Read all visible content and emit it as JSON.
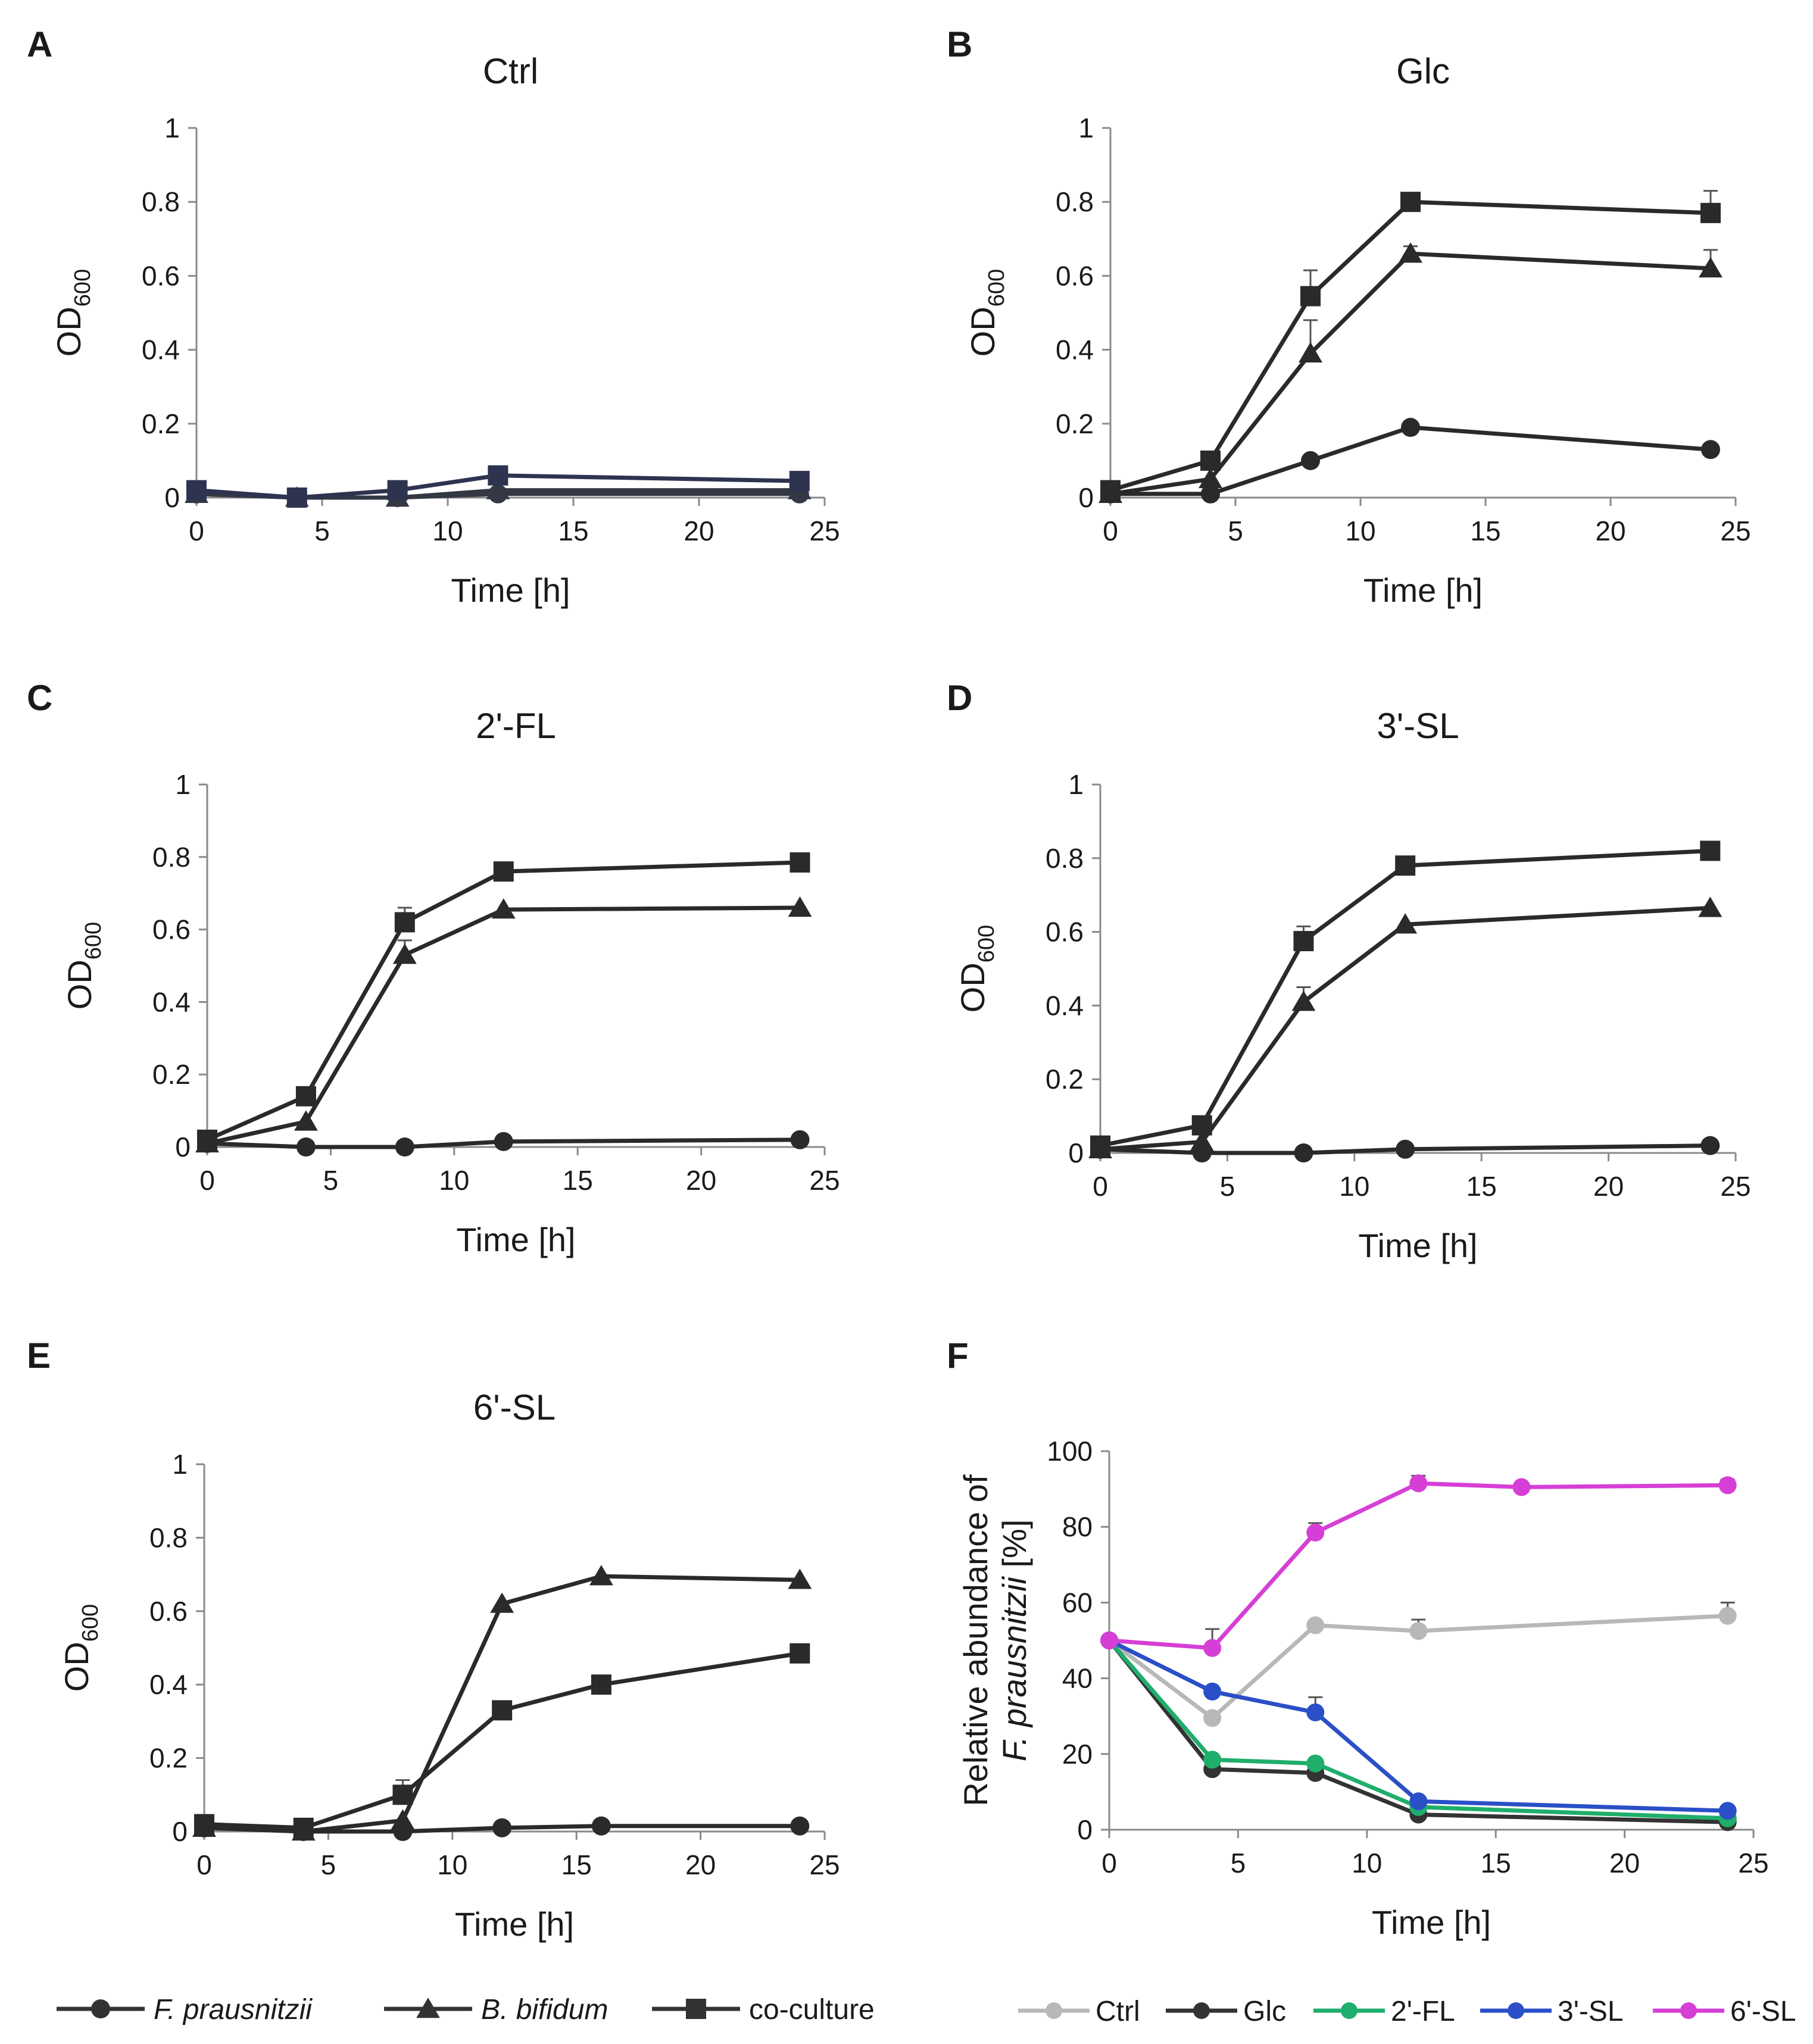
{
  "legend_growth": [
    {
      "label": "F. prausnitzii",
      "marker": "circle",
      "italic": true
    },
    {
      "label": "B. bifidum",
      "marker": "triangle",
      "italic": true
    },
    {
      "label": "co-culture",
      "marker": "square",
      "italic": false
    }
  ],
  "legend_abundance": [
    {
      "label": "Ctrl",
      "color": "#b8b8b8"
    },
    {
      "label": "Glc",
      "color": "#333333"
    },
    {
      "label": "2'-FL",
      "color": "#1fae6b"
    },
    {
      "label": "3'-SL",
      "color": "#2a4fc7"
    },
    {
      "label": "6'-SL",
      "color": "#d63fd6"
    }
  ],
  "chart_data": [
    {
      "panel": "A",
      "title": "Ctrl",
      "type": "line",
      "xlabel": "Time [h]",
      "ylabel": "OD",
      "ylabel_sub": "600",
      "xlim": [
        0,
        25
      ],
      "ylim": [
        0,
        1
      ],
      "xticks": [
        0,
        5,
        10,
        15,
        20,
        25
      ],
      "yticks": [
        0,
        0.2,
        0.4,
        0.6,
        0.8,
        1
      ],
      "line_color": "#333844",
      "series": [
        {
          "name": "F. prausnitzii",
          "marker": "circle",
          "x": [
            0,
            4,
            8,
            12,
            24
          ],
          "values": [
            0.01,
            0.0,
            0.0,
            0.01,
            0.01
          ]
        },
        {
          "name": "B. bifidum",
          "marker": "triangle",
          "x": [
            0,
            4,
            8,
            12,
            24
          ],
          "values": [
            0.01,
            0.0,
            0.0,
            0.02,
            0.02
          ]
        },
        {
          "name": "co-culture",
          "marker": "square",
          "x": [
            0,
            4,
            8,
            12,
            24
          ],
          "values": [
            0.02,
            0.0,
            0.02,
            0.06,
            0.045
          ],
          "color": "#2e3350"
        }
      ]
    },
    {
      "panel": "B",
      "title": "Glc",
      "type": "line",
      "xlabel": "Time [h]",
      "ylabel": "OD",
      "ylabel_sub": "600",
      "xlim": [
        0,
        25
      ],
      "ylim": [
        0,
        1
      ],
      "xticks": [
        0,
        5,
        10,
        15,
        20,
        25
      ],
      "yticks": [
        0,
        0.2,
        0.4,
        0.6,
        0.8,
        1
      ],
      "line_color": "#2a2a2a",
      "series": [
        {
          "name": "F. prausnitzii",
          "marker": "circle",
          "x": [
            0,
            4,
            8,
            12,
            24
          ],
          "values": [
            0.01,
            0.01,
            0.1,
            0.19,
            0.13
          ]
        },
        {
          "name": "B. bifidum",
          "marker": "triangle",
          "x": [
            0,
            4,
            8,
            12,
            24
          ],
          "values": [
            0.01,
            0.05,
            0.39,
            0.66,
            0.62
          ],
          "errors": [
            0,
            0,
            0.09,
            0.02,
            0.05
          ]
        },
        {
          "name": "co-culture",
          "marker": "square",
          "x": [
            0,
            4,
            8,
            12,
            24
          ],
          "values": [
            0.02,
            0.1,
            0.545,
            0.8,
            0.77
          ],
          "errors": [
            0,
            0,
            0.07,
            0,
            0.06
          ]
        }
      ]
    },
    {
      "panel": "C",
      "title": "2'-FL",
      "type": "line",
      "xlabel": "Time [h]",
      "ylabel": "OD",
      "ylabel_sub": "600",
      "xlim": [
        0,
        25
      ],
      "ylim": [
        0,
        1
      ],
      "xticks": [
        0,
        5,
        10,
        15,
        20,
        25
      ],
      "yticks": [
        0,
        0.2,
        0.4,
        0.6,
        0.8,
        1
      ],
      "line_color": "#2a2a2a",
      "series": [
        {
          "name": "F. prausnitzii",
          "marker": "circle",
          "x": [
            0,
            4,
            8,
            12,
            24
          ],
          "values": [
            0.01,
            0.0,
            0.0,
            0.015,
            0.02
          ]
        },
        {
          "name": "B. bifidum",
          "marker": "triangle",
          "x": [
            0,
            4,
            8,
            12,
            24
          ],
          "values": [
            0.01,
            0.07,
            0.53,
            0.655,
            0.66
          ],
          "errors": [
            0,
            0,
            0.04,
            0,
            0
          ]
        },
        {
          "name": "co-culture",
          "marker": "square",
          "x": [
            0,
            4,
            8,
            12,
            24
          ],
          "values": [
            0.02,
            0.14,
            0.62,
            0.76,
            0.785
          ],
          "errors": [
            0,
            0.02,
            0.04,
            0,
            0
          ]
        }
      ]
    },
    {
      "panel": "D",
      "title": "3'-SL",
      "type": "line",
      "xlabel": "Time [h]",
      "ylabel": "OD",
      "ylabel_sub": "600",
      "xlim": [
        0,
        25
      ],
      "ylim": [
        0,
        1
      ],
      "xticks": [
        0,
        5,
        10,
        15,
        20,
        25
      ],
      "yticks": [
        0,
        0.2,
        0.4,
        0.6,
        0.8,
        1
      ],
      "line_color": "#2a2a2a",
      "series": [
        {
          "name": "F. prausnitzii",
          "marker": "circle",
          "x": [
            0,
            4,
            8,
            12,
            24
          ],
          "values": [
            0.01,
            0.0,
            0.0,
            0.01,
            0.02
          ]
        },
        {
          "name": "B. bifidum",
          "marker": "triangle",
          "x": [
            0,
            4,
            8,
            12,
            24
          ],
          "values": [
            0.01,
            0.03,
            0.41,
            0.62,
            0.665
          ],
          "errors": [
            0,
            0,
            0.04,
            0,
            0
          ]
        },
        {
          "name": "co-culture",
          "marker": "square",
          "x": [
            0,
            4,
            8,
            12,
            24
          ],
          "values": [
            0.02,
            0.075,
            0.575,
            0.78,
            0.82
          ],
          "errors": [
            0,
            0,
            0.04,
            0,
            0
          ]
        }
      ]
    },
    {
      "panel": "E",
      "title": "6'-SL",
      "type": "line",
      "xlabel": "Time [h]",
      "ylabel": "OD",
      "ylabel_sub": "600",
      "xlim": [
        0,
        25
      ],
      "ylim": [
        0,
        1
      ],
      "xticks": [
        0,
        5,
        10,
        15,
        20,
        25
      ],
      "yticks": [
        0,
        0.2,
        0.4,
        0.6,
        0.8,
        1
      ],
      "line_color": "#2a2a2a",
      "series": [
        {
          "name": "F. prausnitzii",
          "marker": "circle",
          "x": [
            0,
            4,
            8,
            12,
            16,
            24
          ],
          "values": [
            0.01,
            0.0,
            0.0,
            0.01,
            0.015,
            0.015
          ]
        },
        {
          "name": "B. bifidum",
          "marker": "triangle",
          "x": [
            0,
            4,
            8,
            12,
            16,
            24
          ],
          "values": [
            0.01,
            0.0,
            0.03,
            0.62,
            0.695,
            0.685
          ]
        },
        {
          "name": "co-culture",
          "marker": "square",
          "x": [
            0,
            4,
            8,
            12,
            16,
            24
          ],
          "values": [
            0.02,
            0.01,
            0.1,
            0.33,
            0.4,
            0.485
          ],
          "errors": [
            0,
            0,
            0.04,
            0,
            0,
            0
          ]
        }
      ]
    },
    {
      "panel": "F",
      "title": "",
      "type": "line",
      "xlabel": "Time [h]",
      "ylabel_line1": "Relative abundance of",
      "ylabel_line2_italic": "F. prausnitzii",
      "ylabel_line2_rest": " [%]",
      "xlim": [
        0,
        25
      ],
      "ylim": [
        0,
        100
      ],
      "xticks": [
        0,
        5,
        10,
        15,
        20,
        25
      ],
      "yticks": [
        0,
        20,
        40,
        60,
        80,
        100
      ],
      "series": [
        {
          "name": "Ctrl",
          "color": "#b8b8b8",
          "x": [
            0,
            4,
            8,
            12,
            24
          ],
          "values": [
            50,
            29.5,
            54,
            52.5,
            56.5
          ],
          "errors": [
            0,
            0,
            0,
            3,
            3.5
          ]
        },
        {
          "name": "Glc",
          "color": "#333333",
          "x": [
            0,
            4,
            8,
            12,
            24
          ],
          "values": [
            50,
            16,
            15,
            4,
            2
          ],
          "errors": [
            0,
            0,
            0,
            0,
            0
          ]
        },
        {
          "name": "2'-FL",
          "color": "#1fae6b",
          "x": [
            0,
            4,
            8,
            12,
            24
          ],
          "values": [
            50,
            18.5,
            17.5,
            6,
            3
          ],
          "errors": [
            0,
            0,
            0,
            0,
            0
          ]
        },
        {
          "name": "3'-SL",
          "color": "#2a4fc7",
          "x": [
            0,
            4,
            8,
            12,
            24
          ],
          "values": [
            50,
            36.5,
            31,
            7.5,
            5
          ],
          "errors": [
            0,
            0,
            4,
            0,
            0
          ]
        },
        {
          "name": "6'-SL",
          "color": "#d63fd6",
          "x": [
            0,
            4,
            8,
            12,
            16,
            24
          ],
          "values": [
            50,
            48,
            78.5,
            91.5,
            90.5,
            91
          ],
          "errors": [
            0,
            5,
            2.5,
            2,
            0,
            1.5
          ]
        }
      ]
    }
  ]
}
